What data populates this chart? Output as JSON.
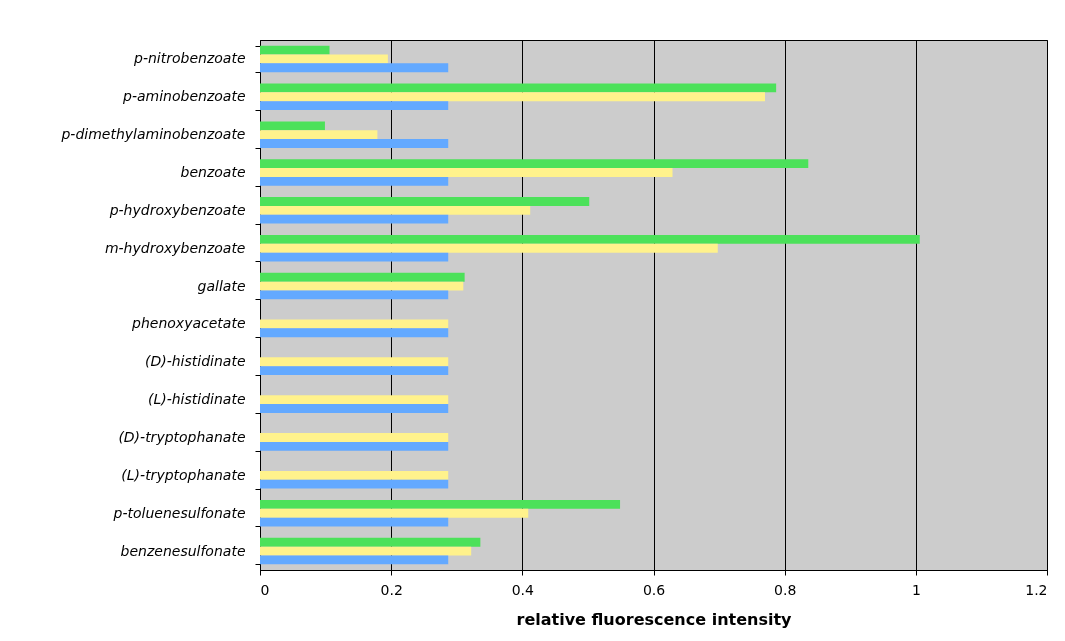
{
  "chart_data": {
    "type": "bar",
    "orientation": "horizontal",
    "xlabel": "relative fluorescence intensity",
    "categories": [
      "p-nitrobenzoate",
      "p-aminobenzoate",
      "p-dimethylaminobenzoate",
      "benzoate",
      "p-hydroxybenzoate",
      "m-hydroxybenzoate",
      "gallate",
      "phenoxyacetate",
      "(D)-histidinate",
      "(L)-histidinate",
      "(D)-tryptophanate",
      "(L)-tryptophanate",
      "p-toluenesulfonate",
      "benzenesulfonate"
    ],
    "series": [
      {
        "color": "#4ce15a",
        "values": [
          0.106,
          0.787,
          0.099,
          0.836,
          0.502,
          1.006,
          0.312,
          null,
          null,
          null,
          null,
          null,
          0.549,
          0.336
        ]
      },
      {
        "color": "#fff28c",
        "values": [
          0.195,
          0.77,
          0.179,
          0.629,
          0.412,
          0.698,
          0.31,
          0.287,
          0.287,
          0.287,
          0.287,
          0.287,
          0.409,
          0.322
        ]
      },
      {
        "color": "#63a9ff",
        "values": [
          0.287,
          0.287,
          0.287,
          0.287,
          0.287,
          0.287,
          0.287,
          0.287,
          0.287,
          0.287,
          0.287,
          0.287,
          0.287,
          0.287
        ]
      }
    ],
    "xlim": [
      0,
      1.2
    ],
    "xticks": [
      0,
      0.2,
      0.4,
      0.6,
      0.8,
      1,
      1.2
    ],
    "grid": "x",
    "legend": false
  }
}
